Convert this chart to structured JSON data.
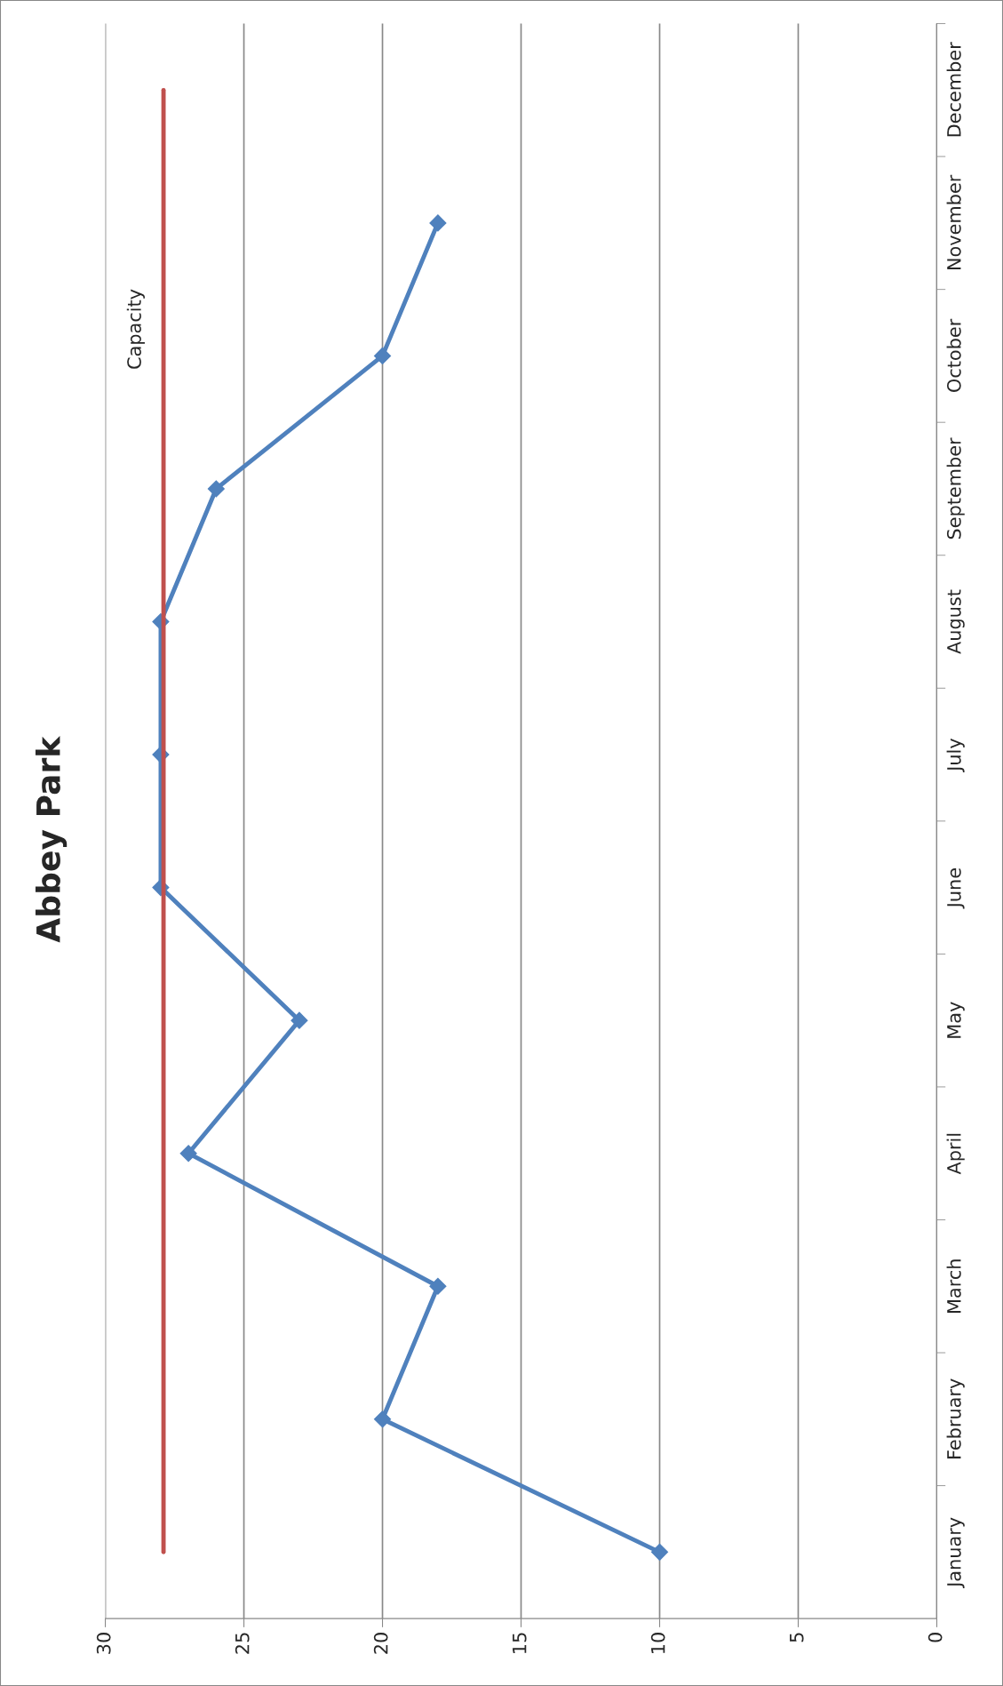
{
  "chart_data": {
    "type": "line",
    "title": "Abbey Park",
    "orientation": "horizontal",
    "categories": [
      "December",
      "November",
      "October",
      "September",
      "August",
      "July",
      "June",
      "May",
      "April",
      "March",
      "February",
      "January"
    ],
    "series": [
      {
        "color": "#4f81bd",
        "marker": "diamond",
        "values": [
          null,
          18,
          20,
          26,
          28,
          28,
          28,
          23,
          27,
          18,
          20,
          10
        ]
      },
      {
        "name": "Capacity",
        "color": "#c0504d",
        "marker": "none",
        "values": [
          27.9,
          27.9,
          27.9,
          27.9,
          27.9,
          27.9,
          27.9,
          27.9,
          27.9,
          27.9,
          27.9,
          27.9
        ]
      }
    ],
    "xlim": [
      30,
      0
    ],
    "xticks": [
      30,
      25,
      20,
      15,
      10,
      5,
      0
    ],
    "grid": "x",
    "legend": false
  }
}
